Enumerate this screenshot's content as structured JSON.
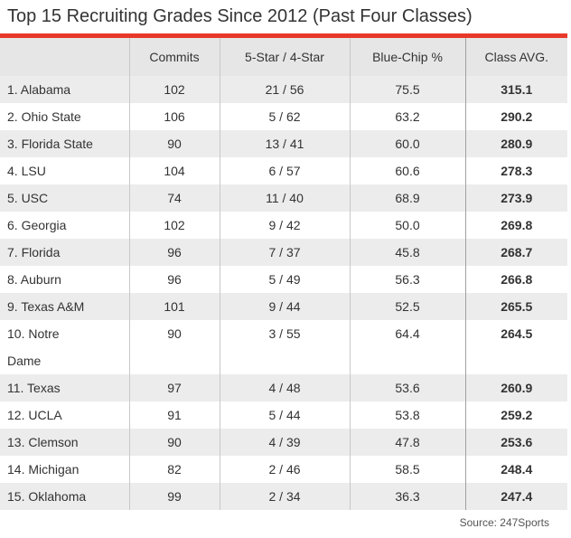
{
  "title": "Top 15 Recruiting Grades Since 2012 (Past Four Classes)",
  "colors": {
    "accent": "#e8382a",
    "header_bg": "#e6e6e6",
    "row_alt_bg": "#ececec",
    "row_bg": "#ffffff"
  },
  "columns": [
    "",
    "Commits",
    "5-Star / 4-Star",
    "Blue-Chip %",
    "Class AVG."
  ],
  "rows": [
    {
      "team": "1. Alabama",
      "commits": "102",
      "stars": "21 / 56",
      "bluechip": "75.5",
      "avg": "315.1"
    },
    {
      "team": "2. Ohio State",
      "commits": "106",
      "stars": "5 / 62",
      "bluechip": "63.2",
      "avg": "290.2"
    },
    {
      "team": "3. Florida State",
      "commits": "90",
      "stars": "13 / 41",
      "bluechip": "60.0",
      "avg": "280.9"
    },
    {
      "team": "4. LSU",
      "commits": "104",
      "stars": "6 / 57",
      "bluechip": "60.6",
      "avg": "278.3"
    },
    {
      "team": "5. USC",
      "commits": "74",
      "stars": "11 / 40",
      "bluechip": "68.9",
      "avg": "273.9"
    },
    {
      "team": "6. Georgia",
      "commits": "102",
      "stars": "9 / 42",
      "bluechip": "50.0",
      "avg": "269.8"
    },
    {
      "team": "7. Florida",
      "commits": "96",
      "stars": "7 / 37",
      "bluechip": "45.8",
      "avg": "268.7"
    },
    {
      "team": "8. Auburn",
      "commits": "96",
      "stars": "5 / 49",
      "bluechip": "56.3",
      "avg": "266.8"
    },
    {
      "team": "9. Texas A&M",
      "commits": "101",
      "stars": "9 / 44",
      "bluechip": "52.5",
      "avg": "265.5"
    },
    {
      "team": "10. Notre Dame",
      "commits": "90",
      "stars": "3 / 55",
      "bluechip": "64.4",
      "avg": "264.5"
    },
    {
      "team": "11. Texas",
      "commits": "97",
      "stars": "4 / 48",
      "bluechip": "53.6",
      "avg": "260.9"
    },
    {
      "team": "12. UCLA",
      "commits": "91",
      "stars": "5 / 44",
      "bluechip": "53.8",
      "avg": "259.2"
    },
    {
      "team": "13. Clemson",
      "commits": "90",
      "stars": "4 / 39",
      "bluechip": "47.8",
      "avg": "253.6"
    },
    {
      "team": "14. Michigan",
      "commits": "82",
      "stars": "2 / 46",
      "bluechip": "58.5",
      "avg": "248.4"
    },
    {
      "team": "15. Oklahoma",
      "commits": "99",
      "stars": "2 / 34",
      "bluechip": "36.3",
      "avg": "247.4"
    }
  ],
  "source": "Source: 247Sports"
}
